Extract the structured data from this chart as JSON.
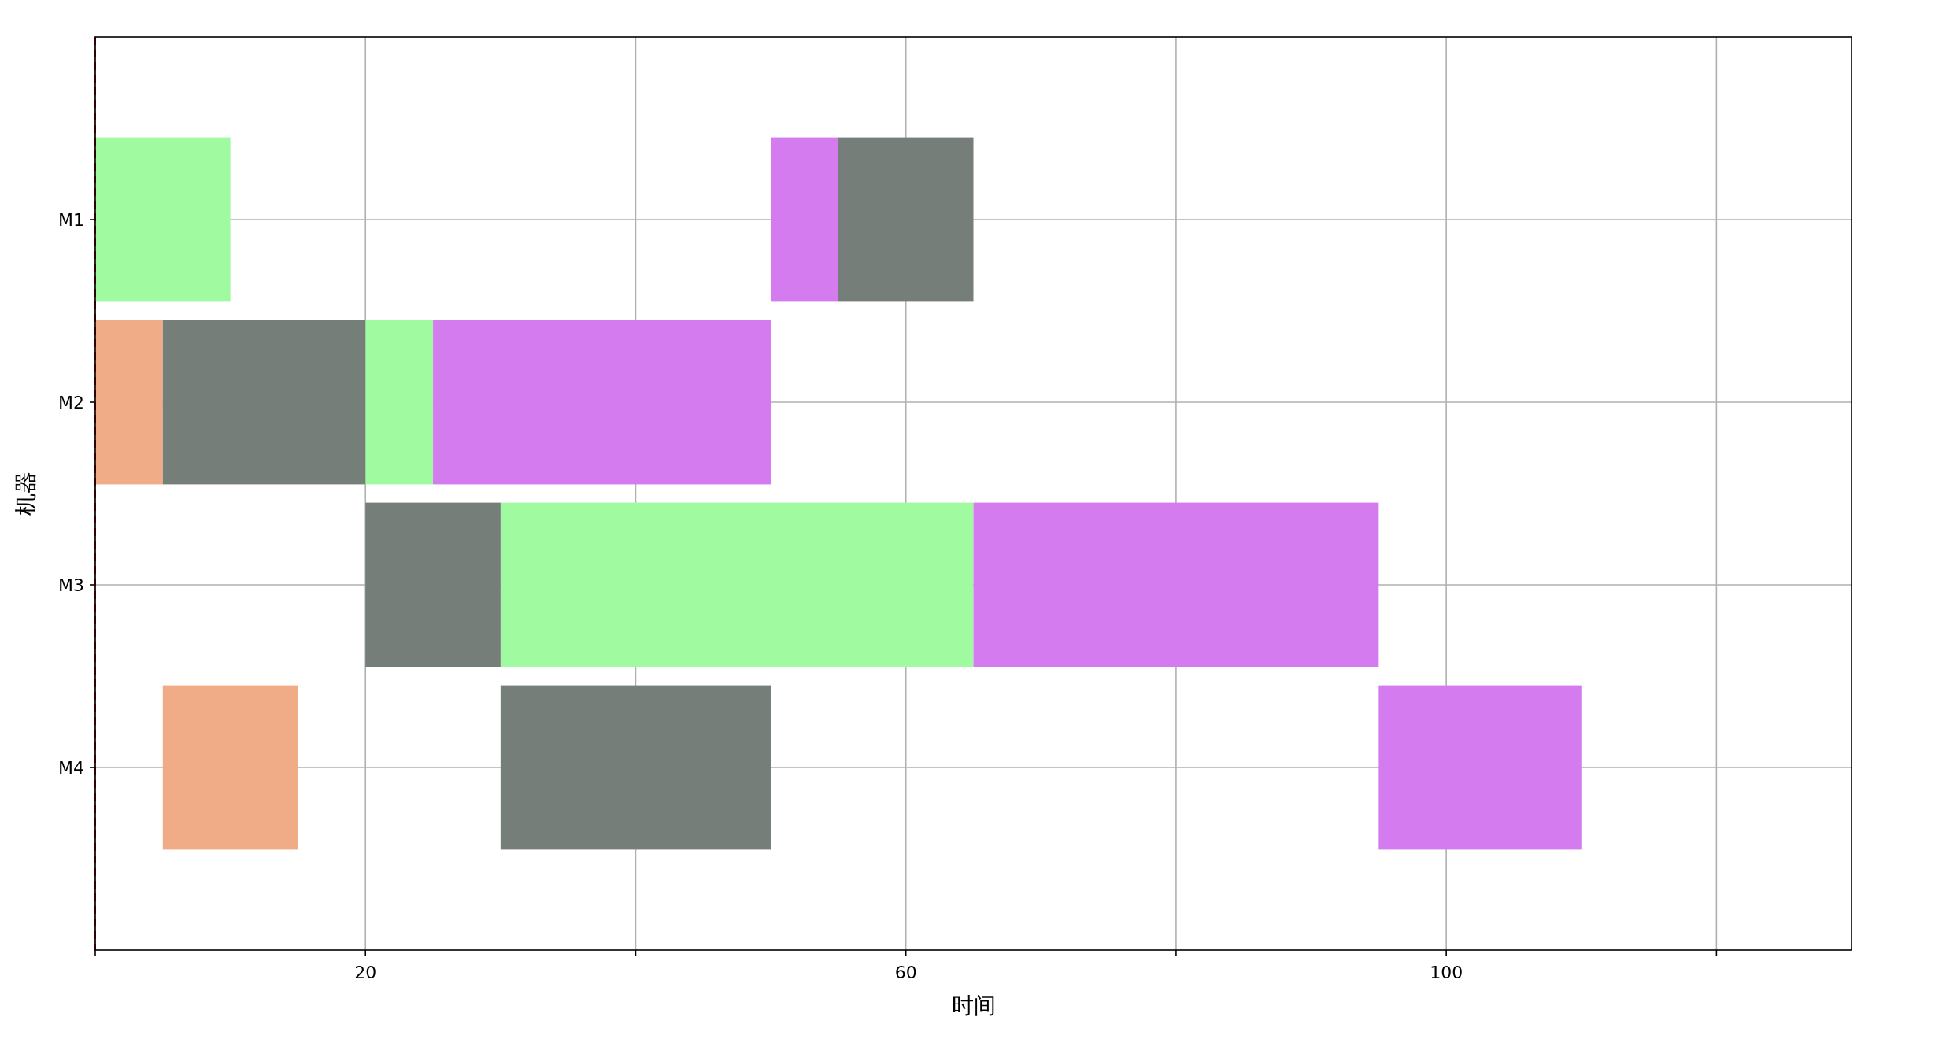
{
  "chart_data": {
    "type": "bar",
    "orientation": "horizontal",
    "xlabel": "时间",
    "ylabel": "机器",
    "categories": [
      "M1",
      "M2",
      "M3",
      "M4"
    ],
    "series": [
      {
        "color": "#9ffaa0",
        "values": [
          10,
          5,
          35,
          null
        ],
        "base": [
          0,
          20,
          30,
          null
        ]
      },
      {
        "color": "#f0ac86",
        "values": [
          null,
          5,
          null,
          10
        ],
        "base": [
          null,
          0,
          null,
          5
        ]
      },
      {
        "color": "#757e78",
        "values": [
          10,
          15,
          10,
          20
        ],
        "base": [
          55,
          5,
          20,
          30
        ]
      },
      {
        "color": "#d57bf0",
        "values": [
          5,
          25,
          30,
          15
        ],
        "base": [
          50,
          25,
          65,
          95
        ]
      }
    ],
    "xlim": [
      0,
      130
    ],
    "xticks": [
      {
        "value": 0,
        "label": null
      },
      20,
      {
        "value": 40,
        "label": null
      },
      60,
      {
        "value": 80,
        "label": null
      },
      100,
      {
        "value": 120,
        "label": null
      }
    ],
    "ref_lines": [
      {
        "axis": "x",
        "value": 0,
        "color": "#ff0000",
        "line_style": "dashed"
      }
    ],
    "grid": true
  }
}
